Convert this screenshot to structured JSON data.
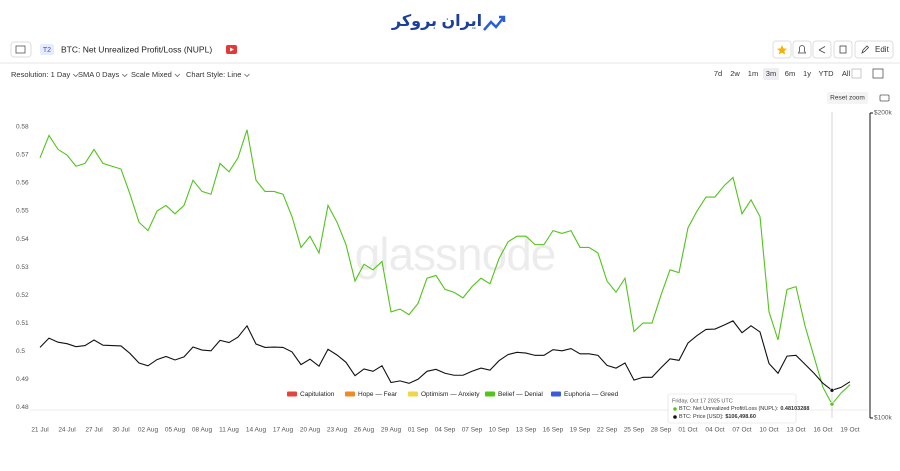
{
  "ui": {
    "logo": "ایران بروکر",
    "badge": "T2",
    "edit": "Edit",
    "reset_zoom": "Reset zoom",
    "watermark": "glassnode",
    "toolbar": [
      "Resolution: 1 Day",
      "SMA 0 Days",
      "Scale Mixed",
      "Chart Style: Line"
    ],
    "ranges": [
      "7d",
      "2w",
      "1m",
      "3m",
      "6m",
      "1y",
      "YTD",
      "All"
    ],
    "active_range": 3
  },
  "chart_data": {
    "type": "line",
    "title": "BTC: Net Unrealized Profit/Loss (NUPL)",
    "categories": [
      "21 Jul",
      null,
      null,
      "24 Jul",
      null,
      null,
      "27 Jul",
      null,
      null,
      "30 Jul",
      null,
      null,
      "02 Aug",
      null,
      null,
      "05 Aug",
      null,
      null,
      "08 Aug",
      null,
      null,
      "11 Aug",
      null,
      null,
      "14 Aug",
      null,
      null,
      "17 Aug",
      null,
      null,
      "20 Aug",
      null,
      null,
      "23 Aug",
      null,
      null,
      "26 Aug",
      null,
      null,
      "29 Aug",
      null,
      null,
      "01 Sep",
      null,
      null,
      "04 Sep",
      null,
      null,
      "07 Sep",
      null,
      null,
      "10 Sep",
      null,
      null,
      "13 Sep",
      null,
      null,
      "16 Sep",
      null,
      null,
      "19 Sep",
      null,
      null,
      "22 Sep",
      null,
      null,
      "25 Sep",
      null,
      null,
      "28 Sep",
      null,
      null,
      "01 Oct",
      null,
      null,
      "04 Oct",
      null,
      null,
      "07 Oct",
      null,
      null,
      "10 Oct",
      null,
      null,
      "13 Oct",
      null,
      null,
      "16 Oct",
      null,
      null,
      "19 Oct"
    ],
    "series": [
      {
        "name": "BTC: Net Unrealized Profit/Loss (NUPL)",
        "color": "#52c41a",
        "values": [
          0.569,
          0.577,
          0.572,
          0.57,
          0.566,
          0.567,
          0.572,
          0.567,
          0.566,
          0.565,
          0.556,
          0.546,
          0.543,
          0.55,
          0.552,
          0.549,
          0.552,
          0.561,
          0.557,
          0.556,
          0.567,
          0.564,
          0.569,
          0.579,
          0.561,
          0.557,
          0.557,
          0.556,
          0.548,
          0.537,
          0.541,
          0.535,
          0.552,
          0.546,
          0.538,
          0.525,
          0.531,
          0.529,
          0.532,
          0.514,
          0.515,
          0.513,
          0.517,
          0.526,
          0.527,
          0.522,
          0.521,
          0.519,
          0.523,
          0.526,
          0.524,
          0.533,
          0.539,
          0.541,
          0.541,
          0.538,
          0.538,
          0.543,
          0.542,
          0.543,
          0.537,
          0.537,
          0.535,
          0.525,
          0.521,
          0.526,
          0.507,
          0.51,
          0.51,
          0.52,
          0.529,
          0.528,
          0.544,
          0.55,
          0.555,
          0.555,
          0.559,
          0.562,
          0.549,
          0.554,
          0.548,
          0.514,
          0.504,
          0.522,
          0.523,
          0.509,
          0.498,
          0.487,
          0.48103288,
          0.485,
          0.488
        ]
      },
      {
        "name": "BTC: Price [USD]",
        "color": "#111111",
        "axis": "y2",
        "values": [
          117400,
          119900,
          118800,
          118400,
          117600,
          117900,
          119400,
          118000,
          117900,
          117800,
          115800,
          113300,
          112600,
          114200,
          115000,
          114100,
          114900,
          117500,
          116700,
          116500,
          119300,
          118700,
          120200,
          123300,
          118300,
          117400,
          117500,
          117400,
          116200,
          112900,
          114300,
          112500,
          116900,
          115400,
          113500,
          110100,
          111800,
          111200,
          112600,
          108400,
          108800,
          108200,
          109200,
          111200,
          111700,
          110700,
          110200,
          110200,
          111200,
          112000,
          111500,
          113900,
          115500,
          116100,
          115900,
          115300,
          115300,
          116800,
          116500,
          117100,
          115700,
          115700,
          115300,
          112700,
          112000,
          113300,
          109000,
          109700,
          109700,
          112100,
          114400,
          114000,
          118600,
          120600,
          122300,
          122400,
          123500,
          124700,
          121400,
          123300,
          121600,
          113200,
          110700,
          115100,
          115300,
          113000,
          110700,
          108200,
          106498.6,
          107200,
          108600
        ]
      }
    ],
    "ylim": [
      0.4761,
      0.585
    ],
    "yticks": [
      0.48,
      0.49,
      0.5,
      0.51,
      0.52,
      0.53,
      0.54,
      0.55,
      0.56,
      0.57,
      0.58
    ],
    "y2lim": [
      100000,
      200000
    ],
    "y2log": true,
    "y2ticks": [
      {
        "value": 100000,
        "label": "$100k"
      },
      {
        "value": 200000,
        "label": "$200k"
      }
    ],
    "legend": [
      {
        "name": "Capitulation",
        "color": "#e5443a"
      },
      {
        "name": "Hope — Fear",
        "color": "#f08a24"
      },
      {
        "name": "Optimism — Anxiety",
        "color": "#f2d649"
      },
      {
        "name": "Belief — Denial",
        "color": "#52c41a"
      },
      {
        "name": "Euphoria — Greed",
        "color": "#3b5bdb"
      }
    ],
    "tooltip": {
      "index": 88,
      "date": "Friday, Oct 17 2025 UTC",
      "rows": [
        {
          "label": "BTC: Net Unrealized Profit/Loss (NUPL):",
          "value": "0.48103288"
        },
        {
          "label": "BTC: Price [USD]:",
          "value": "$106,498.60"
        }
      ]
    }
  }
}
